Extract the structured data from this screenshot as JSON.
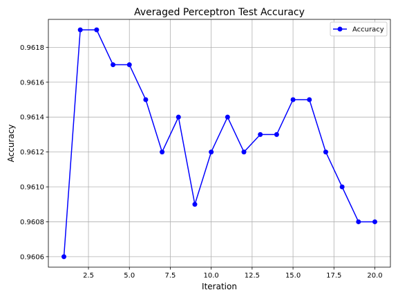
{
  "chart_data": {
    "type": "line",
    "title": "Averaged Perceptron Test Accuracy",
    "xlabel": "Iteration",
    "ylabel": "Accuracy",
    "x": [
      1,
      2,
      3,
      4,
      5,
      6,
      7,
      8,
      9,
      10,
      11,
      12,
      13,
      14,
      15,
      16,
      17,
      18,
      19,
      20
    ],
    "series": [
      {
        "name": "Accuracy",
        "color": "#0000ff",
        "marker": "circle",
        "values": [
          0.9606,
          0.9619,
          0.9619,
          0.9617,
          0.9617,
          0.9615,
          0.9612,
          0.9614,
          0.9609,
          0.9612,
          0.9614,
          0.9612,
          0.9613,
          0.9613,
          0.9615,
          0.9615,
          0.9612,
          0.961,
          0.9608,
          0.9608
        ]
      }
    ],
    "xlim": [
      0.05,
      20.95
    ],
    "ylim": [
      0.96054,
      0.96196
    ],
    "xticks": [
      2.5,
      5.0,
      7.5,
      10.0,
      12.5,
      15.0,
      17.5,
      20.0
    ],
    "xtick_labels": [
      "2.5",
      "5.0",
      "7.5",
      "10.0",
      "12.5",
      "15.0",
      "17.5",
      "20.0"
    ],
    "yticks": [
      0.9606,
      0.9608,
      0.961,
      0.9612,
      0.9614,
      0.9616,
      0.9618
    ],
    "ytick_labels": [
      "0.9606",
      "0.9608",
      "0.9610",
      "0.9612",
      "0.9614",
      "0.9616",
      "0.9618"
    ],
    "grid": true,
    "legend_position": "top-right"
  }
}
